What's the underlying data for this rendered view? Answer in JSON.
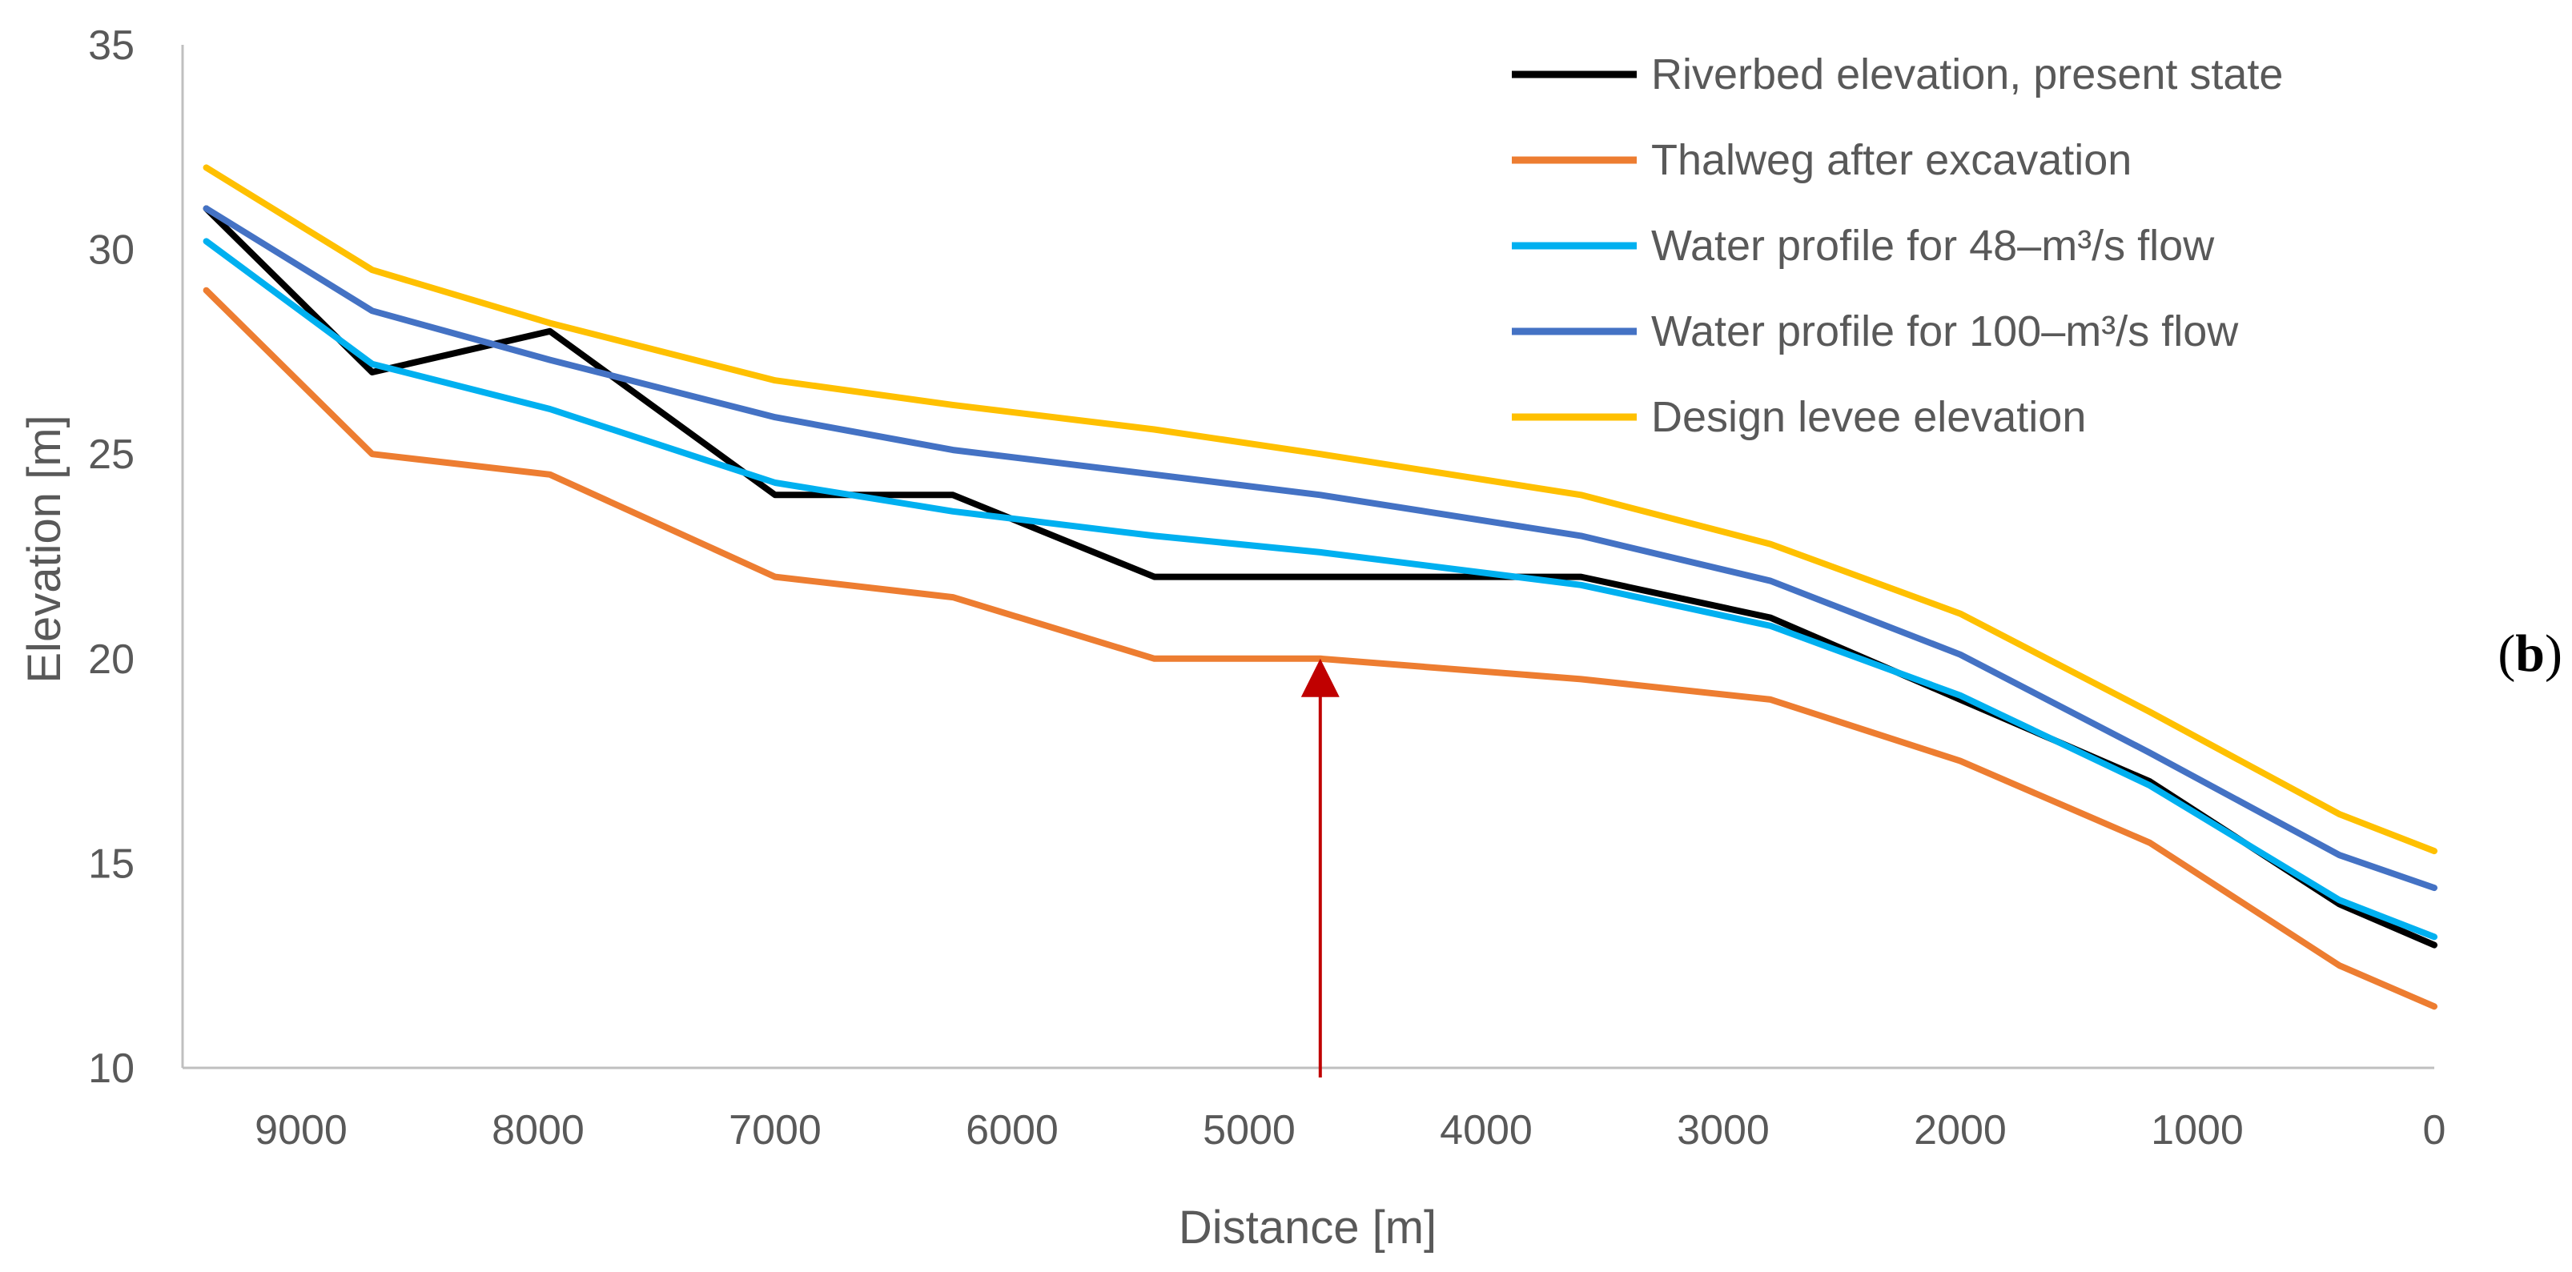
{
  "chart_data": {
    "type": "line",
    "title": "",
    "xlabel": "Distance [m]",
    "ylabel": "Elevation [m]",
    "xlim": [
      9500,
      0
    ],
    "ylim": [
      10,
      35
    ],
    "x_reversed": true,
    "x_ticks": [
      "9000",
      "8000",
      "7000",
      "6000",
      "5000",
      "4000",
      "3000",
      "2000",
      "1000",
      "0"
    ],
    "x_tick_values": [
      9000,
      8000,
      7000,
      6000,
      5000,
      4000,
      3000,
      2000,
      1000,
      0
    ],
    "y_ticks": [
      "10",
      "15",
      "20",
      "25",
      "30",
      "35"
    ],
    "y_tick_values": [
      10,
      15,
      20,
      25,
      30,
      35
    ],
    "x": [
      9400,
      8700,
      7950,
      7000,
      6250,
      5400,
      4700,
      3600,
      2800,
      2000,
      1200,
      400,
      0
    ],
    "series": [
      {
        "name": "Riverbed elevation, present state",
        "color": "#000000",
        "values": [
          31.0,
          27.0,
          28.0,
          24.0,
          24.0,
          22.0,
          22.0,
          22.0,
          21.0,
          19.0,
          17.0,
          14.0,
          13.0
        ]
      },
      {
        "name": "Thalweg after excavation",
        "color": "#ED7D31",
        "values": [
          29.0,
          25.0,
          24.5,
          22.0,
          21.5,
          20.0,
          20.0,
          19.5,
          19.0,
          17.5,
          15.5,
          12.5,
          11.5
        ]
      },
      {
        "name": "Water profile for 48–m³/s flow",
        "color": "#00B0F0",
        "values": [
          30.2,
          27.2,
          26.1,
          24.3,
          23.6,
          23.0,
          22.6,
          21.8,
          20.8,
          19.1,
          16.9,
          14.1,
          13.2
        ]
      },
      {
        "name": "Water profile for 100–m³/s flow",
        "color": "#4472C4",
        "values": [
          31.0,
          28.5,
          27.3,
          25.9,
          25.1,
          24.5,
          24.0,
          23.0,
          21.9,
          20.1,
          17.7,
          15.2,
          14.4
        ]
      },
      {
        "name": "Design levee elevation",
        "color": "#FFC000",
        "values": [
          32.0,
          29.5,
          28.2,
          26.8,
          26.2,
          25.6,
          25.0,
          24.0,
          22.8,
          21.1,
          18.7,
          16.2,
          15.3
        ]
      }
    ],
    "annotations": [
      {
        "type": "arrow",
        "x": 4700,
        "y_from": 10,
        "y_to": 20,
        "color": "#C00000"
      }
    ],
    "legend_position": "top-right",
    "grid": false,
    "panel_label_prefix": "(",
    "panel_label_letter": "b",
    "panel_label_suffix": ")"
  }
}
